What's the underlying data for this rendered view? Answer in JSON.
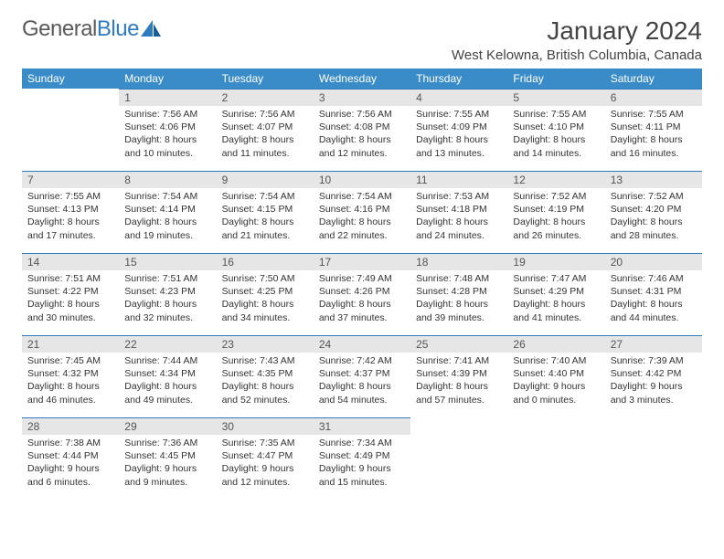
{
  "logo": {
    "part1": "General",
    "part2": "Blue"
  },
  "title": "January 2024",
  "location": "West Kelowna, British Columbia, Canada",
  "colors": {
    "header_bg": "#3a8cc9",
    "header_text": "#ffffff",
    "daynum_bg": "#e6e6e6",
    "daynum_border": "#2f7bbf",
    "text": "#333333",
    "logo_gray": "#5a5a5a",
    "logo_blue": "#2f7bbf"
  },
  "dow": [
    "Sunday",
    "Monday",
    "Tuesday",
    "Wednesday",
    "Thursday",
    "Friday",
    "Saturday"
  ],
  "weeks": [
    [
      null,
      {
        "n": "1",
        "sr": "Sunrise: 7:56 AM",
        "ss": "Sunset: 4:06 PM",
        "d1": "Daylight: 8 hours",
        "d2": "and 10 minutes."
      },
      {
        "n": "2",
        "sr": "Sunrise: 7:56 AM",
        "ss": "Sunset: 4:07 PM",
        "d1": "Daylight: 8 hours",
        "d2": "and 11 minutes."
      },
      {
        "n": "3",
        "sr": "Sunrise: 7:56 AM",
        "ss": "Sunset: 4:08 PM",
        "d1": "Daylight: 8 hours",
        "d2": "and 12 minutes."
      },
      {
        "n": "4",
        "sr": "Sunrise: 7:55 AM",
        "ss": "Sunset: 4:09 PM",
        "d1": "Daylight: 8 hours",
        "d2": "and 13 minutes."
      },
      {
        "n": "5",
        "sr": "Sunrise: 7:55 AM",
        "ss": "Sunset: 4:10 PM",
        "d1": "Daylight: 8 hours",
        "d2": "and 14 minutes."
      },
      {
        "n": "6",
        "sr": "Sunrise: 7:55 AM",
        "ss": "Sunset: 4:11 PM",
        "d1": "Daylight: 8 hours",
        "d2": "and 16 minutes."
      }
    ],
    [
      {
        "n": "7",
        "sr": "Sunrise: 7:55 AM",
        "ss": "Sunset: 4:13 PM",
        "d1": "Daylight: 8 hours",
        "d2": "and 17 minutes."
      },
      {
        "n": "8",
        "sr": "Sunrise: 7:54 AM",
        "ss": "Sunset: 4:14 PM",
        "d1": "Daylight: 8 hours",
        "d2": "and 19 minutes."
      },
      {
        "n": "9",
        "sr": "Sunrise: 7:54 AM",
        "ss": "Sunset: 4:15 PM",
        "d1": "Daylight: 8 hours",
        "d2": "and 21 minutes."
      },
      {
        "n": "10",
        "sr": "Sunrise: 7:54 AM",
        "ss": "Sunset: 4:16 PM",
        "d1": "Daylight: 8 hours",
        "d2": "and 22 minutes."
      },
      {
        "n": "11",
        "sr": "Sunrise: 7:53 AM",
        "ss": "Sunset: 4:18 PM",
        "d1": "Daylight: 8 hours",
        "d2": "and 24 minutes."
      },
      {
        "n": "12",
        "sr": "Sunrise: 7:52 AM",
        "ss": "Sunset: 4:19 PM",
        "d1": "Daylight: 8 hours",
        "d2": "and 26 minutes."
      },
      {
        "n": "13",
        "sr": "Sunrise: 7:52 AM",
        "ss": "Sunset: 4:20 PM",
        "d1": "Daylight: 8 hours",
        "d2": "and 28 minutes."
      }
    ],
    [
      {
        "n": "14",
        "sr": "Sunrise: 7:51 AM",
        "ss": "Sunset: 4:22 PM",
        "d1": "Daylight: 8 hours",
        "d2": "and 30 minutes."
      },
      {
        "n": "15",
        "sr": "Sunrise: 7:51 AM",
        "ss": "Sunset: 4:23 PM",
        "d1": "Daylight: 8 hours",
        "d2": "and 32 minutes."
      },
      {
        "n": "16",
        "sr": "Sunrise: 7:50 AM",
        "ss": "Sunset: 4:25 PM",
        "d1": "Daylight: 8 hours",
        "d2": "and 34 minutes."
      },
      {
        "n": "17",
        "sr": "Sunrise: 7:49 AM",
        "ss": "Sunset: 4:26 PM",
        "d1": "Daylight: 8 hours",
        "d2": "and 37 minutes."
      },
      {
        "n": "18",
        "sr": "Sunrise: 7:48 AM",
        "ss": "Sunset: 4:28 PM",
        "d1": "Daylight: 8 hours",
        "d2": "and 39 minutes."
      },
      {
        "n": "19",
        "sr": "Sunrise: 7:47 AM",
        "ss": "Sunset: 4:29 PM",
        "d1": "Daylight: 8 hours",
        "d2": "and 41 minutes."
      },
      {
        "n": "20",
        "sr": "Sunrise: 7:46 AM",
        "ss": "Sunset: 4:31 PM",
        "d1": "Daylight: 8 hours",
        "d2": "and 44 minutes."
      }
    ],
    [
      {
        "n": "21",
        "sr": "Sunrise: 7:45 AM",
        "ss": "Sunset: 4:32 PM",
        "d1": "Daylight: 8 hours",
        "d2": "and 46 minutes."
      },
      {
        "n": "22",
        "sr": "Sunrise: 7:44 AM",
        "ss": "Sunset: 4:34 PM",
        "d1": "Daylight: 8 hours",
        "d2": "and 49 minutes."
      },
      {
        "n": "23",
        "sr": "Sunrise: 7:43 AM",
        "ss": "Sunset: 4:35 PM",
        "d1": "Daylight: 8 hours",
        "d2": "and 52 minutes."
      },
      {
        "n": "24",
        "sr": "Sunrise: 7:42 AM",
        "ss": "Sunset: 4:37 PM",
        "d1": "Daylight: 8 hours",
        "d2": "and 54 minutes."
      },
      {
        "n": "25",
        "sr": "Sunrise: 7:41 AM",
        "ss": "Sunset: 4:39 PM",
        "d1": "Daylight: 8 hours",
        "d2": "and 57 minutes."
      },
      {
        "n": "26",
        "sr": "Sunrise: 7:40 AM",
        "ss": "Sunset: 4:40 PM",
        "d1": "Daylight: 9 hours",
        "d2": "and 0 minutes."
      },
      {
        "n": "27",
        "sr": "Sunrise: 7:39 AM",
        "ss": "Sunset: 4:42 PM",
        "d1": "Daylight: 9 hours",
        "d2": "and 3 minutes."
      }
    ],
    [
      {
        "n": "28",
        "sr": "Sunrise: 7:38 AM",
        "ss": "Sunset: 4:44 PM",
        "d1": "Daylight: 9 hours",
        "d2": "and 6 minutes."
      },
      {
        "n": "29",
        "sr": "Sunrise: 7:36 AM",
        "ss": "Sunset: 4:45 PM",
        "d1": "Daylight: 9 hours",
        "d2": "and 9 minutes."
      },
      {
        "n": "30",
        "sr": "Sunrise: 7:35 AM",
        "ss": "Sunset: 4:47 PM",
        "d1": "Daylight: 9 hours",
        "d2": "and 12 minutes."
      },
      {
        "n": "31",
        "sr": "Sunrise: 7:34 AM",
        "ss": "Sunset: 4:49 PM",
        "d1": "Daylight: 9 hours",
        "d2": "and 15 minutes."
      },
      null,
      null,
      null
    ]
  ]
}
